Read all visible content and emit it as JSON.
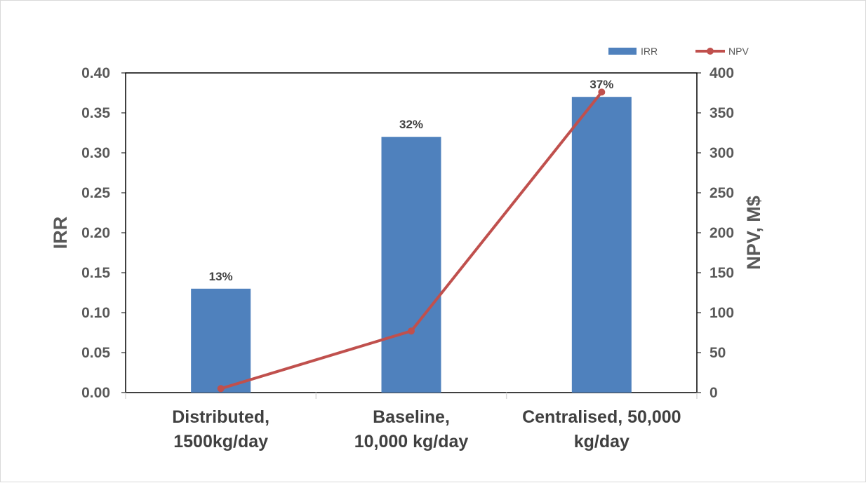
{
  "chart_data": {
    "type": "bar",
    "categories": [
      [
        "Distributed,",
        "1500kg/day"
      ],
      [
        "Baseline,",
        "10,000 kg/day"
      ],
      [
        "Centralised, 50,000",
        "kg/day"
      ]
    ],
    "series": [
      {
        "name": "IRR",
        "kind": "bar",
        "axis": "left",
        "color": "#4f81bd",
        "values": [
          0.13,
          0.32,
          0.37
        ],
        "data_labels": [
          "13%",
          "32%",
          "37%"
        ]
      },
      {
        "name": "NPV",
        "kind": "line",
        "axis": "right",
        "color": "#c0504d",
        "values": [
          5,
          77,
          376
        ]
      }
    ],
    "ylabel": "IRR",
    "ylabel_right": "NPV, M$",
    "ylim": [
      0,
      0.4
    ],
    "ylim_right": [
      0,
      400
    ],
    "yticks": [
      "0.00",
      "0.05",
      "0.10",
      "0.15",
      "0.20",
      "0.25",
      "0.30",
      "0.35",
      "0.40"
    ],
    "yticks_right": [
      "0",
      "50",
      "100",
      "150",
      "200",
      "250",
      "300",
      "350",
      "400"
    ],
    "legend": {
      "position": "top-right",
      "entries": [
        "IRR",
        "NPV"
      ]
    },
    "grid": false
  }
}
